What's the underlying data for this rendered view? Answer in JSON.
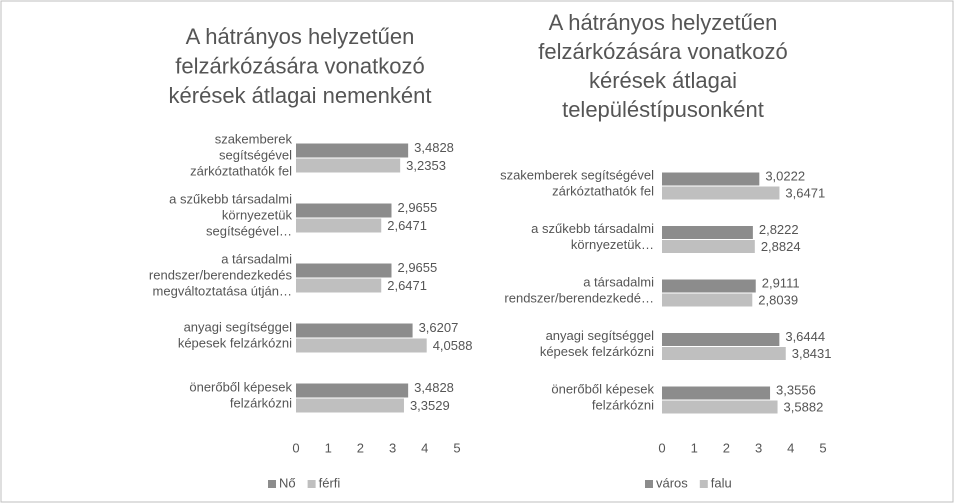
{
  "chart_data": [
    {
      "type": "bar",
      "orientation": "horizontal",
      "title": [
        "A hátrányos helyzetűen",
        "felzárkózására vonatkozó",
        "kérések átlagai nemenként"
      ],
      "categories": [
        [
          "szakemberek",
          "segítségével",
          "zárkóztathatók fel"
        ],
        [
          "a szűkebb társadalmi",
          "környezetük",
          "segítségével…"
        ],
        [
          "a társadalmi",
          "rendszer/berendezkedés",
          "megváltoztatása útján…"
        ],
        [
          "anyagi segítséggel",
          "képesek felzárkózni"
        ],
        [
          "önerőből képesek",
          "felzárkózni"
        ]
      ],
      "series": [
        {
          "name": "Nő",
          "color": "#8c8c8c",
          "values": [
            3.4828,
            2.9655,
            2.9655,
            3.6207,
            3.4828
          ],
          "value_labels": [
            "3,4828",
            "2,9655",
            "2,9655",
            "3,6207",
            "3,4828"
          ]
        },
        {
          "name": "férfi",
          "color": "#bfbfbf",
          "values": [
            3.2353,
            2.6471,
            2.6471,
            4.0588,
            3.3529
          ],
          "value_labels": [
            "3,2353",
            "2,6471",
            "2,6471",
            "4,0588",
            "3,3529"
          ]
        }
      ],
      "xlim": [
        0,
        5
      ],
      "xticks": [
        0,
        1,
        2,
        3,
        4,
        5
      ],
      "legend": "bottom"
    },
    {
      "type": "bar",
      "orientation": "horizontal",
      "title": [
        "A hátrányos helyzetűen",
        "felzárkózására vonatkozó",
        "kérések átlagai",
        "településtípusonként"
      ],
      "categories": [
        [
          "szakemberek segítségével",
          "zárkóztathatók fel"
        ],
        [
          "a szűkebb társadalmi",
          "környezetük…"
        ],
        [
          "a társadalmi",
          "rendszer/berendezkedé…"
        ],
        [
          "anyagi segítséggel",
          "képesek felzárkózni"
        ],
        [
          "önerőből képesek",
          "felzárkózni"
        ]
      ],
      "series": [
        {
          "name": "város",
          "color": "#8c8c8c",
          "values": [
            3.0222,
            2.8222,
            2.9111,
            3.6444,
            3.3556
          ],
          "value_labels": [
            "3,0222",
            "2,8222",
            "2,9111",
            "3,6444",
            "3,3556"
          ]
        },
        {
          "name": "falu",
          "color": "#bfbfbf",
          "values": [
            3.6471,
            2.8824,
            2.8039,
            3.8431,
            3.5882
          ],
          "value_labels": [
            "3,6471",
            "2,8824",
            "2,8039",
            "3,8431",
            "3,5882"
          ]
        }
      ],
      "xlim": [
        0,
        5
      ],
      "xticks": [
        0,
        1,
        2,
        3,
        4,
        5
      ],
      "legend": "bottom"
    }
  ]
}
